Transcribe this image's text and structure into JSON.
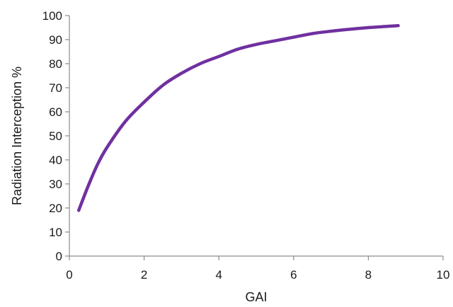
{
  "chart_data": {
    "type": "line",
    "title": "",
    "xlabel": "GAI",
    "ylabel": "Radiation Interception %",
    "xlim": [
      0,
      10
    ],
    "ylim": [
      0,
      100
    ],
    "x_ticks": [
      0,
      2,
      4,
      6,
      8,
      10
    ],
    "y_ticks": [
      0,
      10,
      20,
      30,
      40,
      50,
      60,
      70,
      80,
      90,
      100
    ],
    "grid": false,
    "series_color": "#7030a0",
    "series": [
      {
        "x": [
          0.25,
          0.5,
          0.75,
          1.0,
          1.5,
          2.0,
          2.5,
          3.0,
          3.5,
          4.0,
          4.5,
          5.0,
          5.5,
          6.0,
          6.5,
          7.0,
          7.5,
          8.0,
          8.5,
          8.8
        ],
        "values": [
          19,
          29,
          38,
          45,
          56,
          64,
          71,
          76,
          80,
          83,
          86,
          88,
          89.5,
          91,
          92.5,
          93.5,
          94.3,
          95,
          95.5,
          95.8
        ]
      }
    ]
  }
}
